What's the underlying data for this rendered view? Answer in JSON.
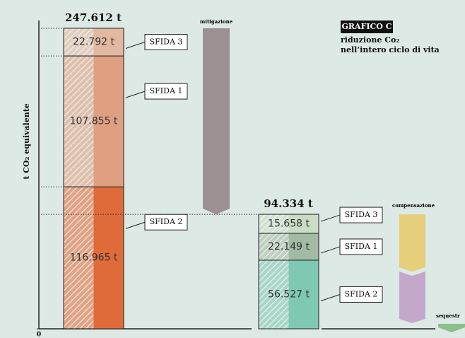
{
  "chart_data": {
    "type": "bar",
    "stacked": true,
    "title": "GRAFICO C",
    "subtitle": [
      "riduzione Co₂",
      "nell’intero ciclo di vita"
    ],
    "y_label": "t CO₂ equivalente",
    "annotations": [
      "mitigazione",
      "compensazione",
      "sequestr"
    ],
    "ylim": [
      0,
      254000
    ],
    "yticks": [
      0
    ],
    "totals": [
      247612,
      94334
    ],
    "total_labels": [
      "247.612 t",
      "94.334 t"
    ],
    "series": [
      {
        "name": "SFIDA 2",
        "colors": [
          "#e06b3a",
          "#7fc8b4"
        ],
        "values": [
          116965,
          56527
        ],
        "value_labels": [
          "116.965 t",
          "56.527 t"
        ]
      },
      {
        "name": "SFIDA 1",
        "colors": [
          "#dea080",
          "#a3bba5"
        ],
        "values": [
          107855,
          22149
        ],
        "value_labels": [
          "107.855 t",
          "22.149 t"
        ]
      },
      {
        "name": "SFIDA 3",
        "colors": [
          "#e2b8a0",
          "#c9dcc4"
        ],
        "values": [
          22792,
          15658
        ],
        "value_labels": [
          "22.792 t",
          "15.658 t"
        ]
      }
    ]
  }
}
